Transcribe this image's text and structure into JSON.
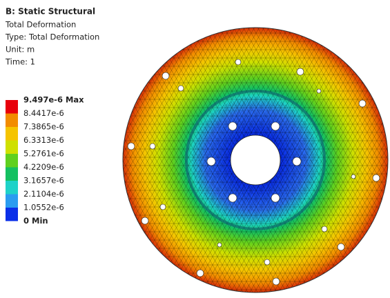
{
  "header": {
    "title": "B: Static Structural",
    "lines": [
      "Total Deformation",
      "Type: Total Deformation",
      "Unit: m",
      "Time: 1"
    ]
  },
  "legend": {
    "labels": [
      "9.497e-6 Max",
      "8.4417e-6",
      "7.3865e-6",
      "6.3313e-6",
      "5.2761e-6",
      "4.2209e-6",
      "3.1657e-6",
      "2.1104e-6",
      "1.0552e-6",
      "0 Min"
    ],
    "colors": [
      "#e8000b",
      "#f28c00",
      "#f5c400",
      "#cfe000",
      "#5fd01e",
      "#14c060",
      "#1ed2c8",
      "#2a9cf0",
      "#0a2fe8"
    ]
  }
}
